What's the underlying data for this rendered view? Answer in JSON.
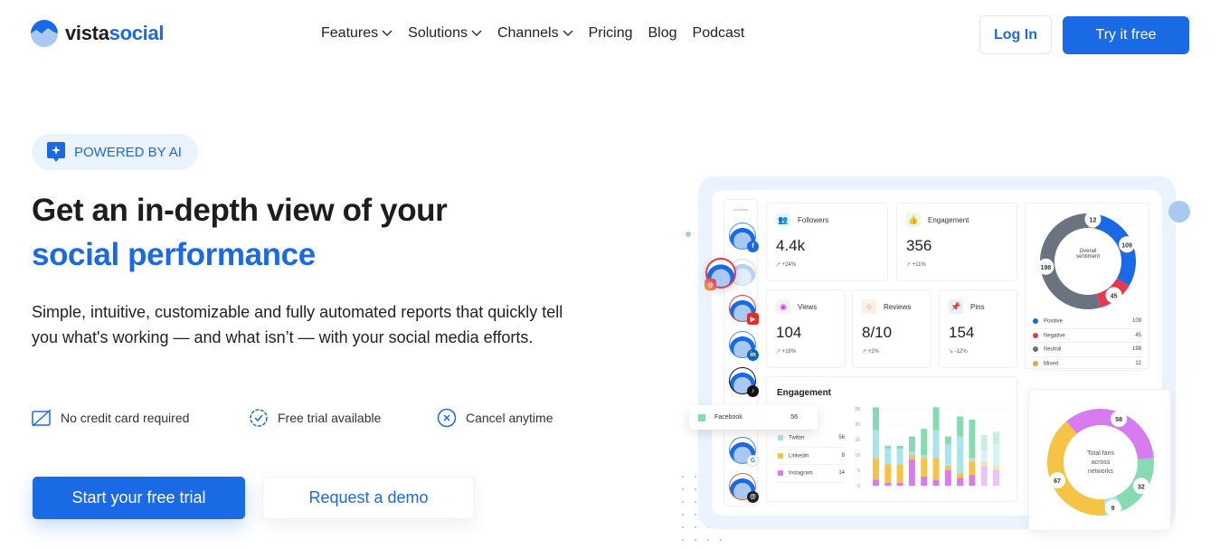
{
  "brand": {
    "name_part1": "vista",
    "name_part2": "social"
  },
  "nav": {
    "items": [
      {
        "label": "Features",
        "dropdown": true
      },
      {
        "label": "Solutions",
        "dropdown": true
      },
      {
        "label": "Channels",
        "dropdown": true
      },
      {
        "label": "Pricing"
      },
      {
        "label": "Blog"
      },
      {
        "label": "Podcast"
      }
    ],
    "login": "Log In",
    "try": "Try it free"
  },
  "hero": {
    "badge": "POWERED BY AI",
    "title_line1": "Get an in-depth view of your",
    "title_line2": "social performance",
    "description": "Simple, intuitive, customizable and fully automated reports that quickly tell you what's working — and what isn’t — with your social media efforts.",
    "features": [
      "No credit card required",
      "Free trial available",
      "Cancel anytime"
    ],
    "cta_primary": "Start your free trial",
    "cta_secondary": "Request a demo"
  },
  "colors": {
    "accent": "#1a6ae6",
    "positive": "#1a6ae6",
    "negative": "#e53950",
    "neutral": "#6b7280",
    "mixed": "#f0a24b",
    "facebook": "#86dcb0",
    "twitter": "#a8e4ec",
    "linkedin": "#f5c445",
    "instagram": "#d77cf0"
  },
  "dashboard": {
    "accounts_label": "ACCOUNTS",
    "followers": {
      "label": "Followers",
      "value": "4.4k",
      "delta": "+24%"
    },
    "engagement": {
      "label": "Engagement",
      "value": "356",
      "delta": "+11%"
    },
    "views": {
      "label": "Views",
      "value": "104",
      "delta": "+18%"
    },
    "reviews": {
      "label": "Reviews",
      "value": "8/10",
      "delta": "+2%"
    },
    "pins": {
      "label": "Pins",
      "value": "154",
      "delta": "-12%"
    },
    "sentiment": {
      "center": "Overall sentiment",
      "items": [
        {
          "label": "Positive",
          "value": 109
        },
        {
          "label": "Negative",
          "value": 45
        },
        {
          "label": "Neutral",
          "value": 198
        },
        {
          "label": "Mixed",
          "value": 12
        }
      ]
    },
    "engagement_chart": {
      "title": "Engagement",
      "legend": [
        {
          "label": "Facebook",
          "value": "56"
        },
        {
          "label": "Twitter",
          "value": "56"
        },
        {
          "label": "Linkedin",
          "value": "8"
        },
        {
          "label": "Instagram",
          "value": "14"
        }
      ],
      "y_ticks": [
        0,
        5,
        10,
        15,
        20,
        25
      ],
      "bars": [
        [
          2,
          7,
          9,
          7.5
        ],
        [
          1,
          6,
          5,
          1
        ],
        [
          1,
          6,
          5,
          1
        ],
        [
          8.5,
          1.5,
          1,
          5
        ],
        [
          3,
          6,
          1,
          8.5
        ],
        [
          2,
          7,
          9,
          7.5
        ],
        [
          5,
          1.5,
          7,
          2.5
        ],
        [
          2.5,
          1.5,
          12,
          6.5
        ],
        [
          3.5,
          4.5,
          1,
          12.5
        ],
        [
          6.5,
          1,
          4,
          5
        ],
        [
          5,
          1.5,
          7,
          4
        ]
      ]
    },
    "fans": {
      "center": "Total fans across networks",
      "items": [
        {
          "label": "Instagram",
          "value": 58
        },
        {
          "label": "Facebook",
          "value": 32
        },
        {
          "label": "Twitter",
          "value": 9
        },
        {
          "label": "Linkedin",
          "value": 67
        }
      ]
    }
  }
}
